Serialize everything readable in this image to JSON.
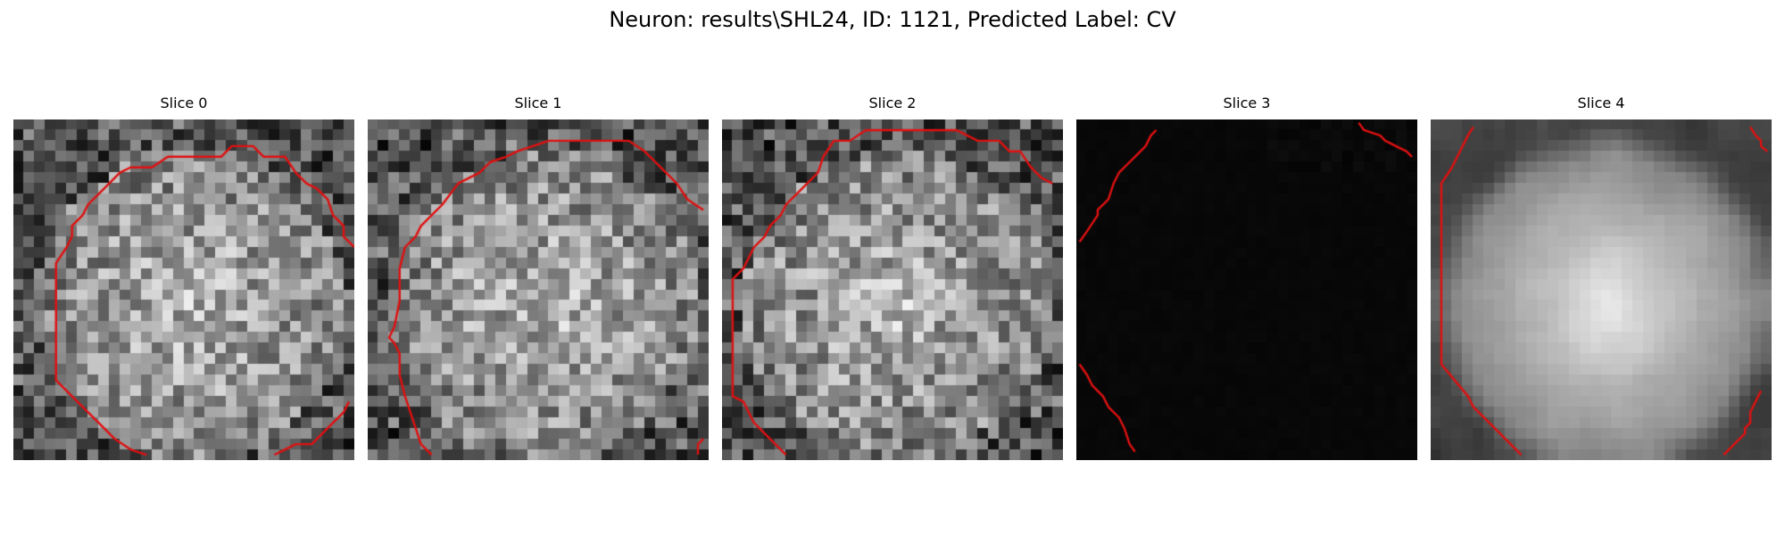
{
  "figure": {
    "title": "Neuron: results\\SHL24, ID: 1121, Predicted Label: CV"
  },
  "colors": {
    "contour": "#e01010",
    "dark_slice_bg": "#060606",
    "background": "#ffffff"
  },
  "slices": [
    {
      "title": "Slice 0",
      "image_style": "noisy-grayscale"
    },
    {
      "title": "Slice 1",
      "image_style": "noisy-grayscale"
    },
    {
      "title": "Slice 2",
      "image_style": "noisy-grayscale"
    },
    {
      "title": "Slice 3",
      "image_style": "near-black"
    },
    {
      "title": "Slice 4",
      "image_style": "smooth-grayscale"
    }
  ]
}
